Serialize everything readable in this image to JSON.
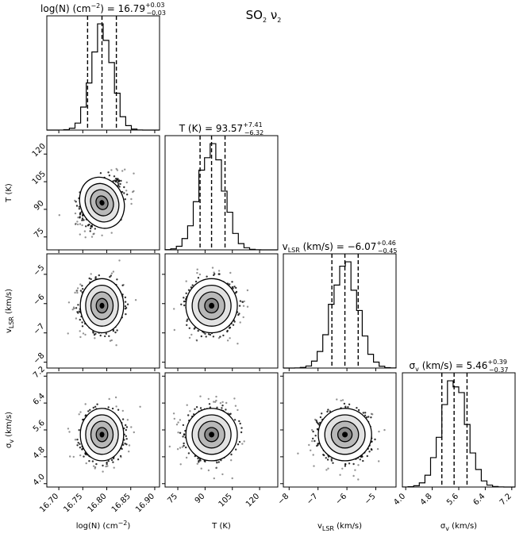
{
  "chart_data": {
    "type": "corner",
    "title": {
      "base": "SO",
      "sub": "2",
      "tail": " ν",
      "sub2": "2"
    },
    "parameters": [
      {
        "key": "logN",
        "label": {
          "base": "log(N) (cm",
          "sup": "−2",
          "tail": ")"
        },
        "title": {
          "prefix": "log(N) (cm",
          "sup": "−2",
          "mid": ") = 16.79",
          "plus": "+0.03",
          "minus": "−0.03"
        },
        "median": 16.79,
        "err_plus": 0.03,
        "err_minus": 0.03,
        "sigma": 0.022,
        "range": [
          16.675,
          16.91
        ],
        "ticks": [
          "16.70",
          "16.75",
          "16.80",
          "16.85",
          "16.90"
        ],
        "tick_values": [
          16.7,
          16.75,
          16.8,
          16.85,
          16.9
        ]
      },
      {
        "key": "T",
        "label": {
          "base": "T (K)"
        },
        "title": {
          "prefix": "T (K) = 93.57",
          "plus": "+7.41",
          "minus": "−6.32"
        },
        "median": 93.57,
        "err_plus": 7.41,
        "err_minus": 6.32,
        "sigma": 6.9,
        "range": [
          68,
          130
        ],
        "ticks": [
          "75",
          "90",
          "105",
          "120"
        ],
        "tick_values": [
          75,
          90,
          105,
          120
        ]
      },
      {
        "key": "vlsr",
        "label": {
          "base": "v",
          "sub": "LSR",
          "tail": " (km/s)"
        },
        "title": {
          "prefix": "v",
          "sub": "LSR",
          "mid": " (km/s) = −6.07",
          "plus": "+0.46",
          "minus": "−0.45"
        },
        "median": -6.07,
        "err_plus": 0.46,
        "err_minus": 0.45,
        "sigma": 0.45,
        "range": [
          -8.2,
          -4.3
        ],
        "ticks": [
          "−8",
          "−7",
          "−6",
          "−5"
        ],
        "tick_values": [
          -8,
          -7,
          -6,
          -5
        ]
      },
      {
        "key": "sigmav",
        "label": {
          "base": "σ",
          "sub": "v",
          "tail": " (km/s)"
        },
        "title": {
          "prefix": "σ",
          "sub": "v",
          "mid": " (km/s) = 5.46",
          "plus": "+0.39",
          "minus": "−0.37"
        },
        "median": 5.46,
        "err_plus": 0.39,
        "err_minus": 0.37,
        "sigma": 0.38,
        "range": [
          3.9,
          7.3
        ],
        "ticks": [
          "4.0",
          "4.8",
          "5.6",
          "6.4",
          "7.2"
        ],
        "tick_values": [
          4.0,
          4.8,
          5.6,
          6.4,
          7.2
        ]
      }
    ],
    "quantile_lines": [
      "16%",
      "50%",
      "84%"
    ],
    "correlations": {
      "T|logN": 0.35,
      "vlsr|logN": 0.0,
      "vlsr|T": 0.0,
      "sigmav|logN": 0.0,
      "sigmav|T": 0.0,
      "sigmav|vlsr": 0.0
    },
    "colors": {
      "points": "#111111",
      "contour": "#000000",
      "fill": "#ffffff",
      "histogram": "#000000",
      "quantile": "#000000"
    }
  }
}
